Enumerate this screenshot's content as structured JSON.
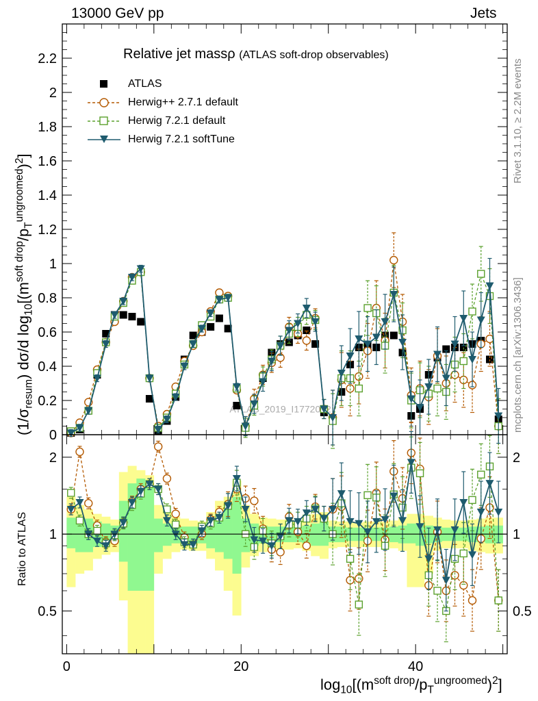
{
  "header": {
    "left": "13000 GeV pp",
    "right": "Jets"
  },
  "side_labels": {
    "top": "Rivet 3.1.10, ≥ 2.2M events",
    "bottom": "mcplots.cern.ch [arXiv:1306.3436]"
  },
  "watermark": "ATLAS_2019_I1772062",
  "titles": {
    "main": "Relative jet massρ",
    "sub": "(ATLAS soft-drop observables)"
  },
  "axes": {
    "y_main_label": "(1/σresum) dσ/d log10[(msoft drop/pTungroomed)2]",
    "y_ratio_label": "Ratio to ATLAS",
    "x_label": "log10[(msoft drop/pTungroomed)2]"
  },
  "colors": {
    "atlas": "#000000",
    "herwigpp": "#b35900",
    "herwig721": "#5aa02c",
    "softtune": "#1e5b6e",
    "band_inner": "#90f890",
    "band_outer": "#fcfc90"
  },
  "chart_data": [
    {
      "type": "scatter",
      "name": "main",
      "xlim": [
        -0.5,
        50.5
      ],
      "ylim": [
        0,
        2.4
      ],
      "yticks": [
        0,
        0.2,
        0.4,
        0.6,
        0.8,
        1,
        1.2,
        1.4,
        1.6,
        1.8,
        2,
        2.2
      ],
      "ytick_labels": [
        "0",
        "0.2",
        "0.4",
        "0.6",
        "0.8",
        "1",
        "1.2",
        "1.4",
        "1.6",
        "1.8",
        "2",
        "2.2"
      ],
      "x": [
        0.5,
        1.5,
        2.5,
        3.5,
        4.5,
        5.5,
        6.5,
        7.5,
        8.5,
        9.5,
        10.5,
        11.5,
        12.5,
        13.5,
        14.5,
        15.5,
        16.5,
        17.5,
        18.5,
        19.5,
        20.5,
        21.5,
        22.5,
        23.5,
        24.5,
        25.5,
        26.5,
        27.5,
        28.5,
        29.5,
        30.5,
        31.5,
        32.5,
        33.5,
        34.5,
        35.5,
        36.5,
        37.5,
        38.5,
        39.5,
        40.5,
        41.5,
        42.5,
        43.5,
        44.5,
        45.5,
        46.5,
        47.5,
        48.5,
        49.5
      ],
      "series": [
        {
          "name": "ATLAS",
          "style": "square",
          "values": [
            0.01,
            0.03,
            0.14,
            0.35,
            0.59,
            0.7,
            0.7,
            0.69,
            0.66,
            0.21,
            0.02,
            0.08,
            0.22,
            0.44,
            0.58,
            0.6,
            0.63,
            0.68,
            0.62,
            0.17,
            0.04,
            0.19,
            0.33,
            0.48,
            0.53,
            0.54,
            0.58,
            0.61,
            0.53,
            0.13,
            0.08,
            0.25,
            0.41,
            0.51,
            0.52,
            0.51,
            0.58,
            0.58,
            0.48,
            0.11,
            0.15,
            0.35,
            0.45,
            0.5,
            0.51,
            0.51,
            0.53,
            0.55,
            0.44,
            0.09
          ]
        },
        {
          "name": "Herwig++ 2.7.1 default",
          "style": "circle",
          "values": [
            0.01,
            0.07,
            0.19,
            0.38,
            0.54,
            0.66,
            0.78,
            0.92,
            0.95,
            0.33,
            0.05,
            0.12,
            0.28,
            0.43,
            0.52,
            0.6,
            0.72,
            0.83,
            0.81,
            0.26,
            0.05,
            0.21,
            0.35,
            0.42,
            0.45,
            0.63,
            0.59,
            0.55,
            0.68,
            0.15,
            0.1,
            0.32,
            0.27,
            0.34,
            0.49,
            0.74,
            0.55,
            1.02,
            0.66,
            0.23,
            0.27,
            0.22,
            0.46,
            0.3,
            0.35,
            0.32,
            0.29,
            0.53,
            0.56,
            0.05
          ]
        },
        {
          "name": "Herwig 7.2.1 default",
          "style": "opensquare",
          "values": [
            0.02,
            0.04,
            0.14,
            0.36,
            0.54,
            0.69,
            0.77,
            0.9,
            0.95,
            0.33,
            0.04,
            0.1,
            0.24,
            0.41,
            0.53,
            0.64,
            0.69,
            0.79,
            0.8,
            0.27,
            0.04,
            0.17,
            0.34,
            0.44,
            0.52,
            0.59,
            0.63,
            0.7,
            0.67,
            0.15,
            0.08,
            0.33,
            0.33,
            0.27,
            0.74,
            0.71,
            0.52,
            0.83,
            0.61,
            0.2,
            0.26,
            0.24,
            0.27,
            0.25,
            0.41,
            0.43,
            0.72,
            0.94,
            0.81,
            0.05
          ]
        },
        {
          "name": "Herwig 7.2.1 softTune",
          "style": "triangle",
          "values": [
            0.01,
            0.04,
            0.14,
            0.33,
            0.53,
            0.7,
            0.78,
            0.92,
            0.97,
            0.33,
            0.03,
            0.09,
            0.22,
            0.4,
            0.53,
            0.62,
            0.71,
            0.79,
            0.8,
            0.28,
            0.05,
            0.18,
            0.31,
            0.43,
            0.52,
            0.61,
            0.65,
            0.74,
            0.66,
            0.15,
            0.1,
            0.36,
            0.46,
            0.56,
            0.53,
            0.57,
            0.66,
            0.82,
            0.54,
            0.21,
            0.16,
            0.28,
            0.47,
            0.33,
            0.53,
            0.68,
            0.44,
            0.67,
            0.87,
            0.11
          ]
        }
      ]
    },
    {
      "type": "scatter",
      "name": "ratio",
      "xlim": [
        -0.5,
        50.5
      ],
      "ylim": [
        0.34,
        2.45
      ],
      "log_y": true,
      "yticks": [
        0.5,
        1,
        2
      ],
      "ytick_labels": [
        "0.5",
        "1",
        "2"
      ],
      "xticks": [
        0,
        20,
        40
      ],
      "xtick_labels": [
        "0",
        "20",
        "40"
      ],
      "band_inner": [
        [
          0.88,
          1.16
        ],
        [
          0.85,
          1.15
        ],
        [
          0.85,
          1.15
        ],
        [
          0.89,
          1.12
        ],
        [
          0.92,
          1.1
        ],
        [
          0.93,
          1.08
        ],
        [
          0.78,
          1.35
        ],
        [
          0.6,
          1.58
        ],
        [
          0.6,
          1.65
        ],
        [
          0.6,
          1.55
        ],
        [
          0.85,
          1.15
        ],
        [
          0.9,
          1.1
        ],
        [
          0.92,
          1.08
        ],
        [
          0.93,
          1.07
        ],
        [
          0.92,
          1.07
        ],
        [
          0.92,
          1.06
        ],
        [
          0.88,
          1.12
        ],
        [
          0.85,
          1.15
        ],
        [
          0.8,
          1.3
        ],
        [
          0.7,
          1.4
        ],
        [
          0.85,
          1.15
        ],
        [
          0.9,
          1.1
        ],
        [
          0.92,
          1.08
        ],
        [
          0.93,
          1.07
        ],
        [
          0.93,
          1.07
        ],
        [
          0.93,
          1.07
        ],
        [
          0.93,
          1.06
        ],
        [
          0.92,
          1.08
        ],
        [
          0.9,
          1.1
        ],
        [
          0.9,
          1.12
        ],
        [
          0.93,
          1.07
        ],
        [
          0.93,
          1.07
        ],
        [
          0.94,
          1.06
        ],
        [
          0.94,
          1.06
        ],
        [
          0.94,
          1.06
        ],
        [
          0.94,
          1.06
        ],
        [
          0.94,
          1.06
        ],
        [
          0.93,
          1.07
        ],
        [
          0.92,
          1.08
        ],
        [
          0.92,
          1.1
        ],
        [
          0.9,
          1.1
        ],
        [
          0.92,
          1.08
        ],
        [
          0.93,
          1.07
        ],
        [
          0.94,
          1.06
        ],
        [
          0.94,
          1.06
        ],
        [
          0.94,
          1.06
        ],
        [
          0.93,
          1.07
        ],
        [
          0.93,
          1.07
        ],
        [
          0.92,
          1.08
        ],
        [
          0.92,
          1.08
        ]
      ],
      "band_outer": [
        [
          0.62,
          1.4
        ],
        [
          0.7,
          1.3
        ],
        [
          0.72,
          1.25
        ],
        [
          0.8,
          1.2
        ],
        [
          0.83,
          1.17
        ],
        [
          0.85,
          1.14
        ],
        [
          0.55,
          1.75
        ],
        [
          0.34,
          1.85
        ],
        [
          0.34,
          1.78
        ],
        [
          0.34,
          1.7
        ],
        [
          0.7,
          1.3
        ],
        [
          0.8,
          1.22
        ],
        [
          0.85,
          1.17
        ],
        [
          0.87,
          1.15
        ],
        [
          0.86,
          1.13
        ],
        [
          0.86,
          1.12
        ],
        [
          0.8,
          1.22
        ],
        [
          0.72,
          1.35
        ],
        [
          0.6,
          1.4
        ],
        [
          0.48,
          1.62
        ],
        [
          0.74,
          1.3
        ],
        [
          0.82,
          1.2
        ],
        [
          0.85,
          1.16
        ],
        [
          0.87,
          1.15
        ],
        [
          0.87,
          1.14
        ],
        [
          0.87,
          1.14
        ],
        [
          0.88,
          1.13
        ],
        [
          0.86,
          1.16
        ],
        [
          0.82,
          1.2
        ],
        [
          0.8,
          1.22
        ],
        [
          0.88,
          1.13
        ],
        [
          0.89,
          1.12
        ],
        [
          0.89,
          1.12
        ],
        [
          0.89,
          1.11
        ],
        [
          0.89,
          1.12
        ],
        [
          0.89,
          1.12
        ],
        [
          0.89,
          1.12
        ],
        [
          0.88,
          1.13
        ],
        [
          0.86,
          1.16
        ],
        [
          0.62,
          1.2
        ],
        [
          0.62,
          1.2
        ],
        [
          0.7,
          1.18
        ],
        [
          0.86,
          1.16
        ],
        [
          0.88,
          1.14
        ],
        [
          0.88,
          1.13
        ],
        [
          0.88,
          1.13
        ],
        [
          0.86,
          1.14
        ],
        [
          0.85,
          1.15
        ],
        [
          0.84,
          1.16
        ],
        [
          0.84,
          1.16
        ]
      ],
      "series": [
        {
          "name": "Herwig++ 2.7.1 default",
          "style": "circle",
          "values": [
            1.25,
            2.1,
            1.32,
            1.08,
            0.93,
            0.94,
            1.11,
            1.34,
            1.5,
            1.57,
            2.2,
            1.65,
            1.2,
            0.97,
            0.91,
            1.0,
            1.14,
            1.22,
            1.31,
            1.5,
            1.38,
            1.35,
            1.05,
            0.87,
            0.85,
            1.17,
            1.02,
            0.9,
            1.28,
            1.15,
            1.25,
            1.28,
            0.66,
            0.67,
            0.94,
            1.45,
            0.95,
            1.76,
            1.38,
            2.08,
            1.8,
            0.63,
            1.02,
            0.6,
            0.69,
            0.63,
            0.55,
            0.96,
            1.27,
            0.55
          ]
        },
        {
          "name": "Herwig 7.2.1 default",
          "style": "opensquare",
          "values": [
            1.45,
            1.13,
            1.0,
            1.03,
            0.92,
            0.99,
            1.1,
            1.3,
            1.44,
            1.57,
            1.5,
            1.25,
            1.09,
            0.93,
            0.91,
            1.07,
            1.1,
            1.16,
            1.29,
            1.59,
            1.0,
            0.89,
            1.03,
            0.92,
            0.98,
            1.09,
            1.09,
            1.15,
            1.26,
            1.15,
            1.0,
            1.32,
            0.8,
            0.53,
            1.42,
            1.39,
            0.9,
            1.43,
            1.27,
            1.82,
            1.73,
            0.69,
            0.6,
            0.5,
            0.8,
            0.84,
            1.36,
            1.71,
            1.84,
            0.55
          ]
        },
        {
          "name": "Herwig 7.2.1 softTune",
          "style": "triangle",
          "values": [
            1.25,
            1.33,
            1.0,
            0.94,
            0.9,
            1.0,
            1.11,
            1.33,
            1.47,
            1.57,
            1.5,
            1.13,
            1.0,
            0.91,
            0.91,
            1.03,
            1.13,
            1.16,
            1.29,
            1.65,
            1.25,
            0.95,
            0.94,
            0.9,
            0.98,
            1.13,
            1.12,
            1.21,
            1.25,
            1.15,
            1.25,
            1.44,
            1.12,
            1.1,
            1.02,
            1.12,
            1.14,
            1.41,
            1.13,
            1.91,
            1.07,
            0.8,
            1.04,
            0.66,
            1.04,
            1.33,
            0.83,
            1.22,
            1.58,
            1.22
          ]
        }
      ]
    }
  ]
}
